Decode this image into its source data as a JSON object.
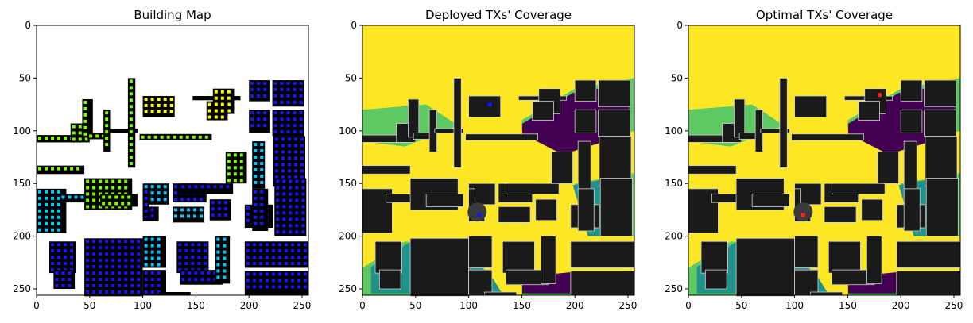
{
  "figure": {
    "panels": [
      {
        "title": "Building Map",
        "kind": "building-map",
        "colors": {
          "background": "#ffffff",
          "building": "#000000",
          "grid_green": "#7cfc00",
          "grid_blue": "#1414ff",
          "grid_cyan": "#00c8ff",
          "grid_yellow": "#ffff00"
        }
      },
      {
        "title": "Deployed TXs' Coverage",
        "kind": "coverage",
        "tx_marker": {
          "color": "#1414ff",
          "points": [
            [
              120,
              75
            ],
            [
              110,
              180
            ]
          ]
        }
      },
      {
        "title": "Optimal TXs' Coverage",
        "kind": "coverage",
        "tx_marker": {
          "color": "#ff2020",
          "points": [
            [
              180,
              66
            ],
            [
              108,
              180
            ]
          ]
        }
      }
    ],
    "coverage_colors": {
      "strong": "#fde725",
      "medium": "#5ec962",
      "weak": "#21918c",
      "none": "#440154",
      "building": "#1a1a1a",
      "edge": "#d0d0d0"
    }
  },
  "chart_data": [
    {
      "type": "heatmap",
      "title": "Building Map",
      "xlim": [
        0,
        256
      ],
      "ylim": [
        256,
        0
      ],
      "xticks": [
        0,
        50,
        100,
        150,
        200,
        250
      ],
      "yticks": [
        0,
        50,
        100,
        150,
        200,
        250
      ],
      "xlabel": "",
      "ylabel": ""
    },
    {
      "type": "heatmap",
      "title": "Deployed TXs' Coverage",
      "xlim": [
        0,
        256
      ],
      "ylim": [
        256,
        0
      ],
      "xticks": [
        0,
        50,
        100,
        150,
        200,
        250
      ],
      "yticks": [
        0,
        50,
        100,
        150,
        200,
        250
      ],
      "xlabel": "",
      "ylabel": "",
      "transmitters": [
        {
          "x": 120,
          "y": 75
        },
        {
          "x": 110,
          "y": 180
        }
      ]
    },
    {
      "type": "heatmap",
      "title": "Optimal TXs' Coverage",
      "xlim": [
        0,
        256
      ],
      "ylim": [
        256,
        0
      ],
      "xticks": [
        0,
        50,
        100,
        150,
        200,
        250
      ],
      "yticks": [
        0,
        50,
        100,
        150,
        200,
        250
      ],
      "xlabel": "",
      "ylabel": "",
      "transmitters": [
        {
          "x": 180,
          "y": 66
        },
        {
          "x": 108,
          "y": 180
        }
      ]
    }
  ]
}
